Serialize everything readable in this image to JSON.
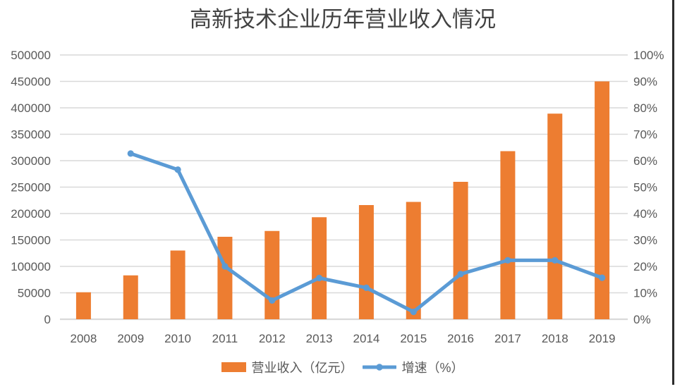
{
  "title": "高新技术企业历年营业收入情况",
  "legend": {
    "bar_label": "营业收入（亿元）",
    "line_label": "增速（%）"
  },
  "chart_data": {
    "type": "combo",
    "title": "高新技术企业历年营业收入情况",
    "categories": [
      "2008",
      "2009",
      "2010",
      "2011",
      "2012",
      "2013",
      "2014",
      "2015",
      "2016",
      "2017",
      "2018",
      "2019"
    ],
    "series": [
      {
        "name": "营业收入（亿元）",
        "type": "bar",
        "axis": "left",
        "color": "#ED7D31",
        "values": [
          51000,
          83000,
          130000,
          156000,
          167000,
          193000,
          216000,
          222000,
          260000,
          318000,
          389000,
          450000
        ]
      },
      {
        "name": "增速（%）",
        "type": "line",
        "axis": "right",
        "color": "#5B9BD5",
        "values": [
          null,
          62.7,
          56.6,
          20.0,
          7.1,
          15.6,
          11.9,
          2.8,
          17.1,
          22.3,
          22.3,
          15.7
        ]
      }
    ],
    "left_axis": {
      "min": 0,
      "max": 500000,
      "step": 50000,
      "tick_labels": [
        "0",
        "50000",
        "100000",
        "150000",
        "200000",
        "250000",
        "300000",
        "350000",
        "400000",
        "450000",
        "500000"
      ]
    },
    "right_axis": {
      "min": 0,
      "max": 100,
      "step": 10,
      "tick_labels": [
        "0%",
        "10%",
        "20%",
        "30%",
        "40%",
        "50%",
        "60%",
        "70%",
        "80%",
        "90%",
        "100%"
      ]
    },
    "grid": true,
    "legend_position": "bottom"
  },
  "colors": {
    "bar": "#ED7D31",
    "line": "#5B9BD5",
    "grid": "#D9D9D9",
    "axis_text": "#595959",
    "title_text": "#424242",
    "border": "#2B2B2B"
  }
}
